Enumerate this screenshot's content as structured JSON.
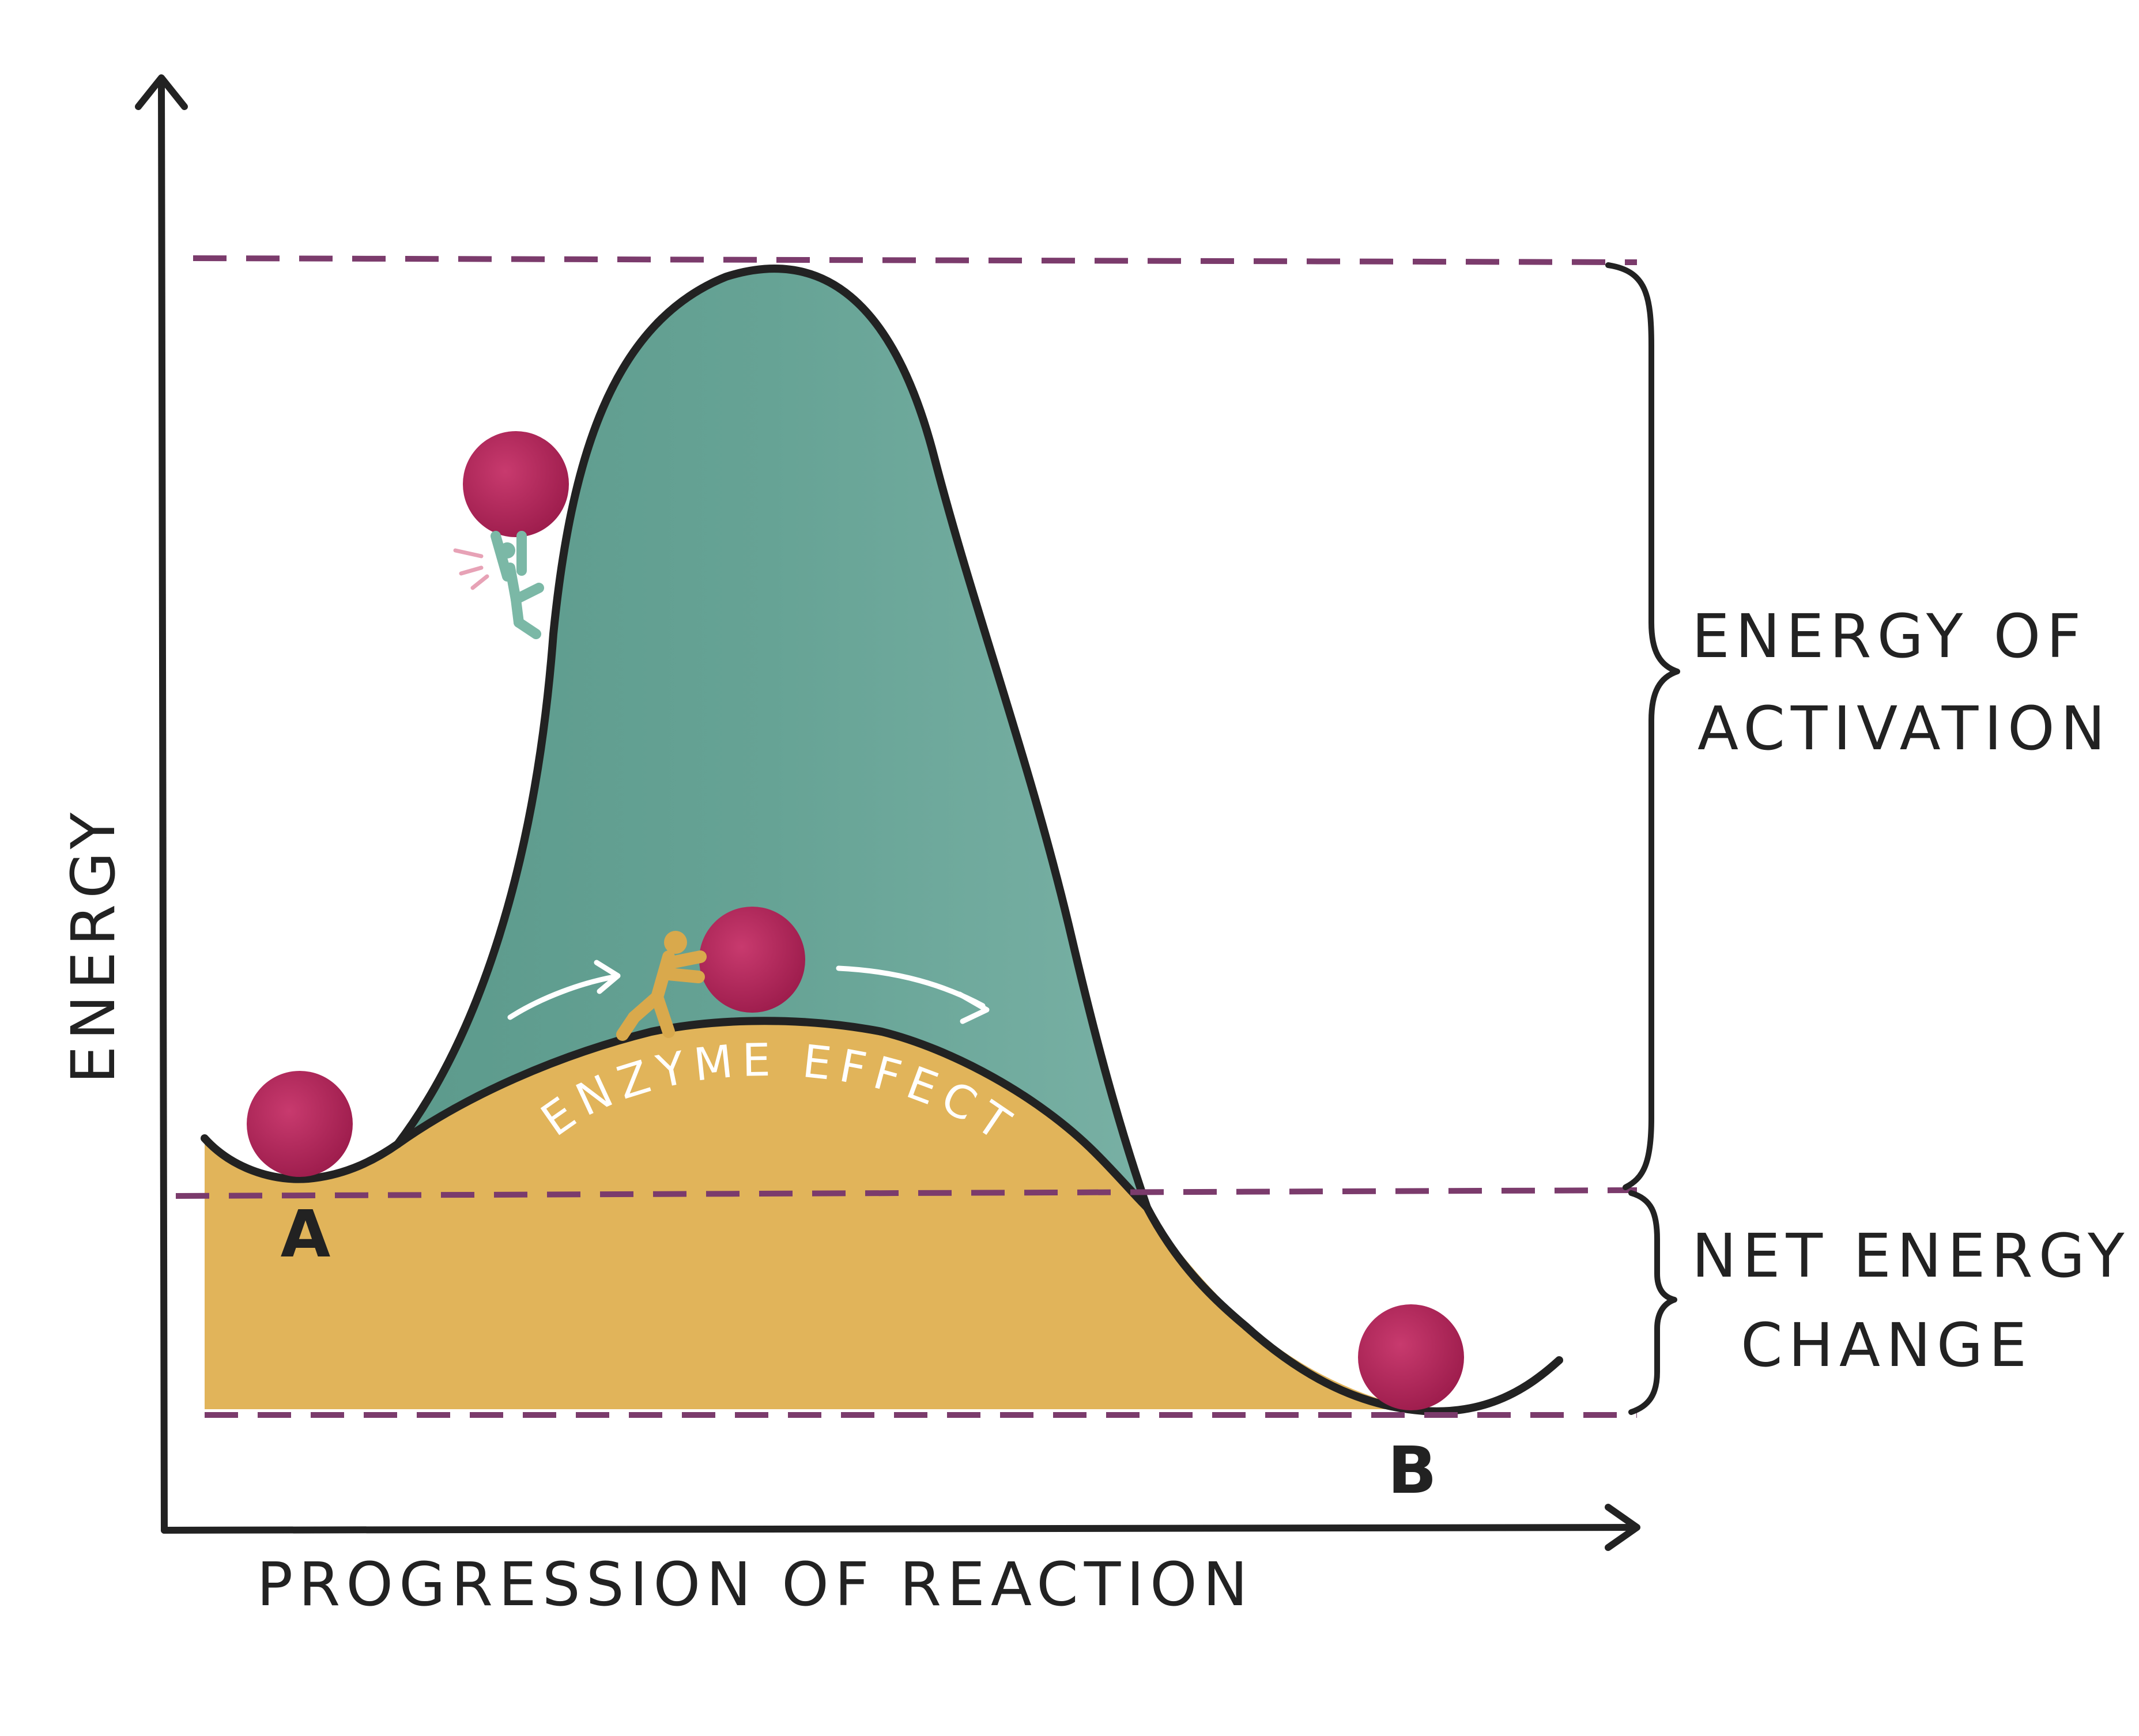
{
  "axes": {
    "y_label": "ENERGY",
    "x_label": "PROGRESSION OF REACTION"
  },
  "points": {
    "start": "A",
    "end": "B"
  },
  "annotations": {
    "activation_line1": "ENERGY OF",
    "activation_line2": "ACTIVATION",
    "net_line1": "NET ENERGY",
    "net_line2": "CHANGE",
    "enzyme": "ENZYME EFFECT"
  },
  "colors": {
    "uncatalyzed_fill": "#6aa79a",
    "catalyzed_fill": "#e1b45a",
    "ball": "#b0245a",
    "dashed_line": "#7b3b6c",
    "ink": "#222222",
    "climber": "#7bb8a6",
    "pusher": "#d9a94c"
  }
}
